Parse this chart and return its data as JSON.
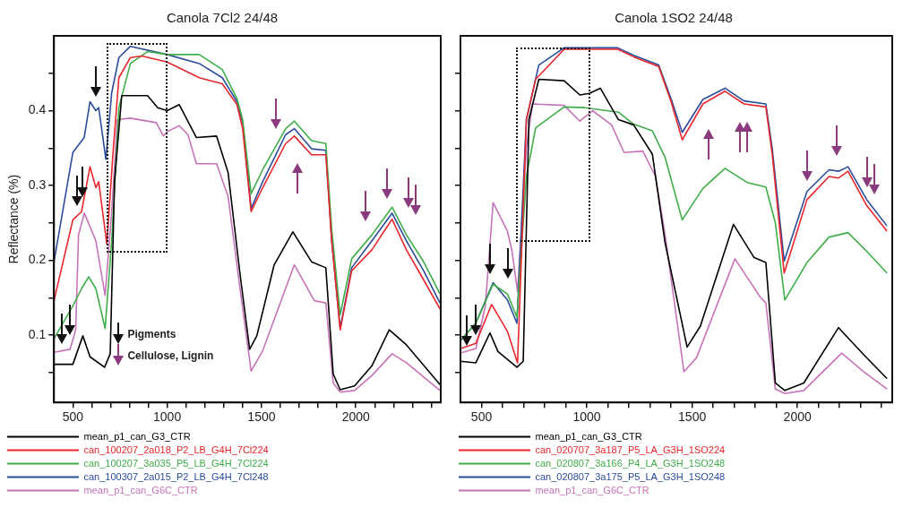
{
  "chart_data": [
    {
      "type": "line",
      "title": "Canola 7Cl2 24/48",
      "ylabel": "Reflectance (%)",
      "legend": "bottom",
      "xlim": [
        400,
        2450
      ],
      "ylim": [
        0.01,
        0.5
      ],
      "xticks": [
        500,
        {
          "value": 600,
          "label": null
        },
        {
          "value": 700,
          "label": null
        },
        {
          "value": 800,
          "label": null
        },
        {
          "value": 900,
          "label": null
        },
        1000,
        {
          "value": 1100,
          "label": null
        },
        {
          "value": 1200,
          "label": null
        },
        {
          "value": 1300,
          "label": null
        },
        {
          "value": 1400,
          "label": null
        },
        1500,
        {
          "value": 1600,
          "label": null
        },
        {
          "value": 1700,
          "label": null
        },
        {
          "value": 1800,
          "label": null
        },
        {
          "value": 1900,
          "label": null
        },
        2000,
        {
          "value": 2100,
          "label": null
        },
        {
          "value": 2200,
          "label": null
        },
        {
          "value": 2300,
          "label": null
        },
        {
          "value": 2400,
          "label": null
        }
      ],
      "yticks": [
        {
          "value": 0.05,
          "label": null
        },
        0.1,
        {
          "value": 0.15,
          "label": null
        },
        0.2,
        {
          "value": 0.25,
          "label": null
        },
        0.3,
        {
          "value": 0.35,
          "label": null
        },
        0.4,
        {
          "value": 0.45,
          "label": null
        }
      ],
      "annotations": [
        "Pigments",
        "Cellulose, Lignin"
      ],
      "series": [
        {
          "name": "mean_p1_can_G3_CTR",
          "color": "#000000",
          "x": [
            400,
            500,
            553,
            591,
            668,
            698,
            721,
            759,
            896,
            950,
            1000,
            1064,
            1155,
            1262,
            1323,
            1384,
            1437,
            1475,
            1567,
            1666,
            1765,
            1841,
            1880,
            1917,
            1993,
            2085,
            2177,
            2268,
            2446
          ],
          "values": [
            0.061,
            0.061,
            0.099,
            0.071,
            0.057,
            0.075,
            0.305,
            0.42,
            0.42,
            0.404,
            0.4,
            0.408,
            0.364,
            0.366,
            0.317,
            0.186,
            0.081,
            0.099,
            0.194,
            0.238,
            0.198,
            0.19,
            0.048,
            0.027,
            0.032,
            0.059,
            0.107,
            0.087,
            0.034
          ]
        },
        {
          "name": "can_100207_2a018_P2_LB_G4H_7Cl224",
          "color": "#e8262b",
          "x": [
            400,
            500,
            546,
            591,
            622,
            637,
            680,
            713,
            744,
            805,
            866,
            1000,
            1170,
            1292,
            1370,
            1400,
            1445,
            1506,
            1628,
            1674,
            1765,
            1841,
            1872,
            1917,
            1978,
            2085,
            2192,
            2268,
            2359,
            2446
          ],
          "values": [
            0.146,
            0.254,
            0.265,
            0.325,
            0.297,
            0.305,
            0.222,
            0.344,
            0.444,
            0.471,
            0.473,
            0.465,
            0.444,
            0.436,
            0.408,
            0.376,
            0.265,
            0.297,
            0.356,
            0.366,
            0.341,
            0.341,
            0.226,
            0.107,
            0.186,
            0.214,
            0.255,
            0.214,
            0.174,
            0.135
          ]
        },
        {
          "name": "can_100207_3a035_P5_LB_G4H_7Cl224",
          "color": "#3fae49",
          "x": [
            400,
            500,
            546,
            584,
            622,
            671,
            706,
            744,
            805,
            896,
            1000,
            1170,
            1292,
            1370,
            1400,
            1445,
            1506,
            1628,
            1674,
            1765,
            1841,
            1872,
            1917,
            1978,
            2085,
            2192,
            2268,
            2359,
            2446
          ],
          "values": [
            0.095,
            0.139,
            0.162,
            0.178,
            0.162,
            0.109,
            0.226,
            0.404,
            0.463,
            0.479,
            0.475,
            0.475,
            0.455,
            0.416,
            0.388,
            0.289,
            0.321,
            0.376,
            0.386,
            0.36,
            0.356,
            0.242,
            0.127,
            0.202,
            0.234,
            0.271,
            0.234,
            0.198,
            0.155
          ]
        },
        {
          "name": "can_100307_2a015_P2_LB_G4H_7Cl248",
          "color": "#2b4c9b",
          "x": [
            400,
            500,
            560,
            591,
            622,
            637,
            675,
            706,
            744,
            805,
            1000,
            1170,
            1292,
            1370,
            1400,
            1445,
            1506,
            1628,
            1674,
            1765,
            1841,
            1872,
            1917,
            1978,
            2085,
            2192,
            2268,
            2359,
            2446
          ],
          "values": [
            0.198,
            0.344,
            0.364,
            0.412,
            0.4,
            0.404,
            0.335,
            0.424,
            0.471,
            0.486,
            0.475,
            0.463,
            0.444,
            0.412,
            0.384,
            0.269,
            0.305,
            0.368,
            0.376,
            0.349,
            0.347,
            0.226,
            0.109,
            0.19,
            0.226,
            0.263,
            0.226,
            0.186,
            0.143
          ]
        },
        {
          "name": "mean_p1_can_G6C_CTR",
          "color": "#c673b8",
          "x": [
            400,
            485,
            515,
            530,
            561,
            622,
            671,
            706,
            736,
            805,
            942,
            980,
            1000,
            1064,
            1110,
            1155,
            1262,
            1323,
            1384,
            1445,
            1506,
            1674,
            1780,
            1841,
            1880,
            1917,
            1993,
            2085,
            2192,
            2268,
            2446
          ],
          "values": [
            0.077,
            0.081,
            0.107,
            0.234,
            0.263,
            0.226,
            0.153,
            0.265,
            0.388,
            0.39,
            0.384,
            0.366,
            0.372,
            0.38,
            0.368,
            0.329,
            0.329,
            0.285,
            0.166,
            0.052,
            0.079,
            0.194,
            0.146,
            0.143,
            0.036,
            0.024,
            0.026,
            0.046,
            0.075,
            0.063,
            0.026
          ]
        }
      ]
    },
    {
      "type": "line",
      "title": "Canola 1SO2 24/48",
      "legend": "bottom",
      "tick_labels": "x",
      "xlim": [
        400,
        2450
      ],
      "ylim": [
        0.01,
        0.5
      ],
      "xticks": [
        500,
        {
          "value": 600,
          "label": null
        },
        {
          "value": 700,
          "label": null
        },
        {
          "value": 800,
          "label": null
        },
        {
          "value": 900,
          "label": null
        },
        1000,
        {
          "value": 1100,
          "label": null
        },
        {
          "value": 1200,
          "label": null
        },
        {
          "value": 1300,
          "label": null
        },
        {
          "value": 1400,
          "label": null
        },
        1500,
        {
          "value": 1600,
          "label": null
        },
        {
          "value": 1700,
          "label": null
        },
        {
          "value": 1800,
          "label": null
        },
        {
          "value": 1900,
          "label": null
        },
        2000,
        {
          "value": 2100,
          "label": null
        },
        {
          "value": 2200,
          "label": null
        },
        {
          "value": 2300,
          "label": null
        },
        {
          "value": 2400,
          "label": null
        }
      ],
      "yticks": [
        {
          "value": 0.05,
          "label": null
        },
        {
          "value": 0.1,
          "label": null
        },
        {
          "value": 0.15,
          "label": null
        },
        {
          "value": 0.2,
          "label": null
        },
        {
          "value": 0.25,
          "label": null
        },
        {
          "value": 0.3,
          "label": null
        },
        {
          "value": 0.35,
          "label": null
        },
        {
          "value": 0.4,
          "label": null
        },
        {
          "value": 0.45,
          "label": null
        }
      ],
      "series": [
        {
          "name": "mean_p1_can_G3_CTR",
          "color": "#000000",
          "x": [
            400,
            473,
            540,
            578,
            668,
            698,
            725,
            772,
            892,
            967,
            1012,
            1064,
            1150,
            1222,
            1311,
            1371,
            1476,
            1539,
            1696,
            1793,
            1850,
            1895,
            1940,
            2030,
            2195,
            2314,
            2425
          ],
          "values": [
            0.065,
            0.063,
            0.103,
            0.078,
            0.057,
            0.065,
            0.388,
            0.442,
            0.44,
            0.421,
            0.423,
            0.43,
            0.388,
            0.381,
            0.342,
            0.224,
            0.084,
            0.112,
            0.248,
            0.204,
            0.197,
            0.036,
            0.026,
            0.036,
            0.11,
            0.074,
            0.042
          ]
        },
        {
          "name": "can_020707_3a187_P5_LA_G3H_1SO224",
          "color": "#e8262b",
          "x": [
            400,
            473,
            548,
            623,
            671,
            713,
            757,
            892,
            1147,
            1222,
            1341,
            1401,
            1453,
            1551,
            1656,
            1746,
            1850,
            1880,
            1937,
            2045,
            2150,
            2195,
            2240,
            2329,
            2425
          ],
          "values": [
            0.082,
            0.089,
            0.141,
            0.105,
            0.063,
            0.388,
            0.442,
            0.482,
            0.482,
            0.472,
            0.459,
            0.411,
            0.361,
            0.409,
            0.426,
            0.409,
            0.405,
            0.342,
            0.183,
            0.281,
            0.312,
            0.31,
            0.319,
            0.273,
            0.239
          ]
        },
        {
          "name": "can_020807_3a166_P4_LA_G3H_1SO248",
          "color": "#3fae49",
          "x": [
            400,
            473,
            555,
            623,
            668,
            713,
            757,
            892,
            992,
            1150,
            1222,
            1311,
            1371,
            1453,
            1551,
            1656,
            1761,
            1850,
            1895,
            1940,
            2045,
            2150,
            2240,
            2329,
            2425
          ],
          "values": [
            0.093,
            0.116,
            0.168,
            0.155,
            0.124,
            0.312,
            0.377,
            0.405,
            0.404,
            0.398,
            0.382,
            0.373,
            0.338,
            0.254,
            0.296,
            0.323,
            0.304,
            0.298,
            0.25,
            0.147,
            0.197,
            0.231,
            0.237,
            0.212,
            0.183
          ]
        },
        {
          "name": "can_020807_3a175_P5_LA_G3H_1SO248",
          "color": "#2b4c9b",
          "x": [
            400,
            473,
            555,
            623,
            668,
            713,
            772,
            892,
            1147,
            1222,
            1341,
            1401,
            1453,
            1551,
            1656,
            1746,
            1850,
            1880,
            1937,
            2045,
            2150,
            2195,
            2240,
            2329,
            2425
          ],
          "values": [
            0.093,
            0.116,
            0.17,
            0.147,
            0.116,
            0.388,
            0.461,
            0.484,
            0.484,
            0.474,
            0.461,
            0.415,
            0.371,
            0.415,
            0.43,
            0.413,
            0.409,
            0.35,
            0.199,
            0.292,
            0.321,
            0.319,
            0.325,
            0.281,
            0.246
          ]
        },
        {
          "name": "mean_p1_can_G6C_CTR",
          "color": "#c673b8",
          "x": [
            400,
            473,
            518,
            555,
            623,
            645,
            671,
            713,
            742,
            892,
            967,
            1027,
            1117,
            1177,
            1266,
            1326,
            1371,
            1461,
            1521,
            1703,
            1823,
            1850,
            1895,
            1940,
            2030,
            2210,
            2314,
            2425
          ],
          "values": [
            0.076,
            0.082,
            0.139,
            0.277,
            0.239,
            0.212,
            0.158,
            0.35,
            0.409,
            0.407,
            0.386,
            0.4,
            0.381,
            0.344,
            0.346,
            0.312,
            0.235,
            0.051,
            0.07,
            0.202,
            0.151,
            0.143,
            0.028,
            0.022,
            0.026,
            0.076,
            0.051,
            0.028
          ]
        }
      ]
    }
  ]
}
